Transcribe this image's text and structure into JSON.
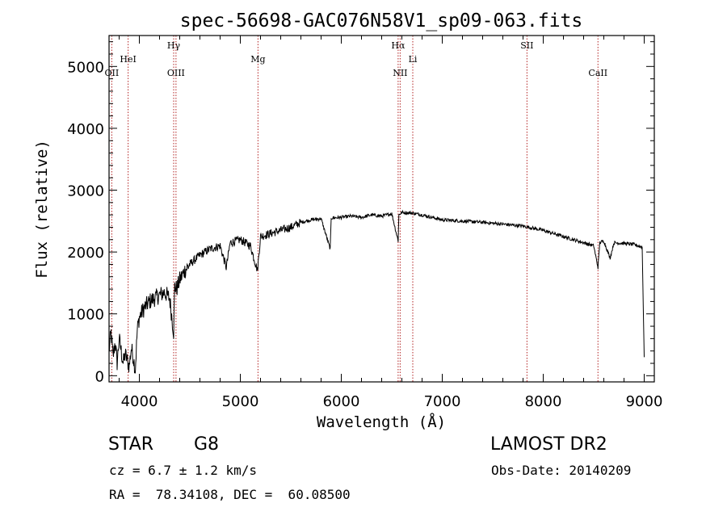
{
  "chart_data": {
    "type": "line",
    "title": "spec-56698-GAC076N58V1_sp09-063.fits",
    "xlabel": "Wavelength (Å)",
    "ylabel": "Flux (relative)",
    "xlim": [
      3700,
      9100
    ],
    "ylim": [
      -100,
      5500
    ],
    "x_ticks": [
      4000,
      5000,
      6000,
      7000,
      8000,
      9000
    ],
    "y_ticks": [
      0,
      1000,
      2000,
      3000,
      4000,
      5000
    ],
    "grid": false,
    "series": [
      {
        "x": [
          3700,
          3720,
          3740,
          3760,
          3780,
          3800,
          3820,
          3840,
          3860,
          3880,
          3900,
          3920,
          3940,
          3960,
          3980,
          4000,
          4050,
          4100,
          4150,
          4200,
          4250,
          4300,
          4340,
          4350,
          4370,
          4400,
          4450,
          4500,
          4600,
          4700,
          4800,
          4861,
          4900,
          5000,
          5100,
          5170,
          5200,
          5300,
          5400,
          5500,
          5600,
          5700,
          5800,
          5890,
          5900,
          6000,
          6100,
          6200,
          6300,
          6400,
          6500,
          6563,
          6570,
          6600,
          6700,
          6800,
          6900,
          7000,
          7200,
          7400,
          7600,
          7800,
          8000,
          8200,
          8400,
          8500,
          8542,
          8560,
          8600,
          8662,
          8700,
          8800,
          8900,
          8980,
          9000
        ],
        "y": [
          400,
          700,
          300,
          550,
          200,
          600,
          400,
          200,
          350,
          250,
          150,
          450,
          300,
          100,
          750,
          950,
          1100,
          1200,
          1250,
          1300,
          1350,
          1250,
          700,
          1450,
          1400,
          1550,
          1700,
          1800,
          1950,
          2050,
          2100,
          1750,
          2150,
          2200,
          2100,
          1700,
          2250,
          2300,
          2350,
          2400,
          2480,
          2520,
          2540,
          2050,
          2550,
          2560,
          2580,
          2560,
          2600,
          2580,
          2620,
          2180,
          2600,
          2640,
          2630,
          2600,
          2560,
          2520,
          2500,
          2480,
          2450,
          2420,
          2350,
          2250,
          2150,
          2100,
          1750,
          2150,
          2180,
          1900,
          2150,
          2140,
          2120,
          2080,
          300
        ]
      }
    ],
    "lines": [
      {
        "label": "OII",
        "x": 3727,
        "row": 2
      },
      {
        "label": "HeI",
        "x": 3889,
        "row": 1
      },
      {
        "label": "Hγ",
        "x": 4340,
        "row": 0
      },
      {
        "label": "OIII",
        "x": 4363,
        "row": 2
      },
      {
        "label": "Mg",
        "x": 5175,
        "row": 1
      },
      {
        "label": "Hα",
        "x": 6563,
        "row": 0
      },
      {
        "label": "NII",
        "x": 6583,
        "row": 2
      },
      {
        "label": "Li",
        "x": 6708,
        "row": 1
      },
      {
        "label": "SII",
        "x": 7839,
        "row": 0
      },
      {
        "label": "CaII",
        "x": 8542,
        "row": 2
      }
    ]
  },
  "info": {
    "class": "STAR",
    "subclass": "G8",
    "survey": "LAMOST DR2",
    "cz": "cz = 6.7 ± 1.2 km/s",
    "obs_date": "Obs-Date: 20140209",
    "coords": "RA =  78.34108, DEC =  60.08500"
  }
}
